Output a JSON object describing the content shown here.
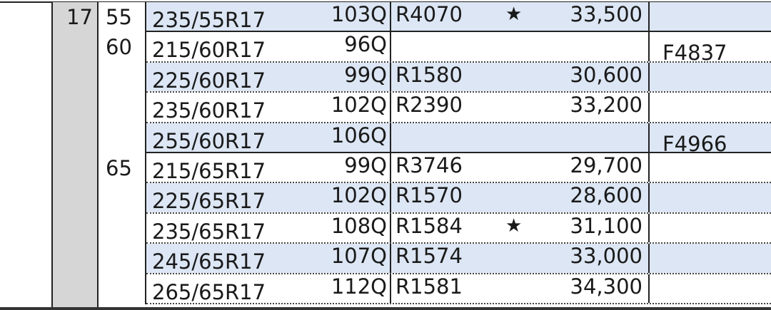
{
  "rim": "17",
  "groups": [
    {
      "aspect": "55",
      "rows": [
        {
          "size": "235/55R17",
          "load": "103Q",
          "code": "R4070",
          "star": "★",
          "price": "33,500",
          "fcode": "",
          "blue": true
        }
      ]
    },
    {
      "aspect": "60",
      "rows": [
        {
          "size": "215/60R17",
          "load": "96Q",
          "code": "",
          "star": "",
          "price": "",
          "fcode": "F4837",
          "blue": false
        },
        {
          "size": "225/60R17",
          "load": "99Q",
          "code": "R1580",
          "star": "",
          "price": "30,600",
          "fcode": "",
          "blue": true
        },
        {
          "size": "235/60R17",
          "load": "102Q",
          "code": "R2390",
          "star": "",
          "price": "33,200",
          "fcode": "",
          "blue": false
        },
        {
          "size": "255/60R17",
          "load": "106Q",
          "code": "",
          "star": "",
          "price": "",
          "fcode": "F4966",
          "blue": true
        }
      ]
    },
    {
      "aspect": "65",
      "rows": [
        {
          "size": "215/65R17",
          "load": "99Q",
          "code": "R3746",
          "star": "",
          "price": "29,700",
          "fcode": "",
          "blue": false
        },
        {
          "size": "225/65R17",
          "load": "102Q",
          "code": "R1570",
          "star": "",
          "price": "28,600",
          "fcode": "",
          "blue": true
        },
        {
          "size": "235/65R17",
          "load": "108Q",
          "code": "R1584",
          "star": "★",
          "price": "31,100",
          "fcode": "",
          "blue": false
        },
        {
          "size": "245/65R17",
          "load": "107Q",
          "code": "R1574",
          "star": "",
          "price": "33,000",
          "fcode": "",
          "blue": true
        },
        {
          "size": "265/65R17",
          "load": "112Q",
          "code": "R1581",
          "star": "",
          "price": "34,300",
          "fcode": "",
          "blue": false
        }
      ]
    }
  ],
  "colors": {
    "row_highlight": "#dce6f4",
    "rim_column": "#d6d6d6"
  }
}
